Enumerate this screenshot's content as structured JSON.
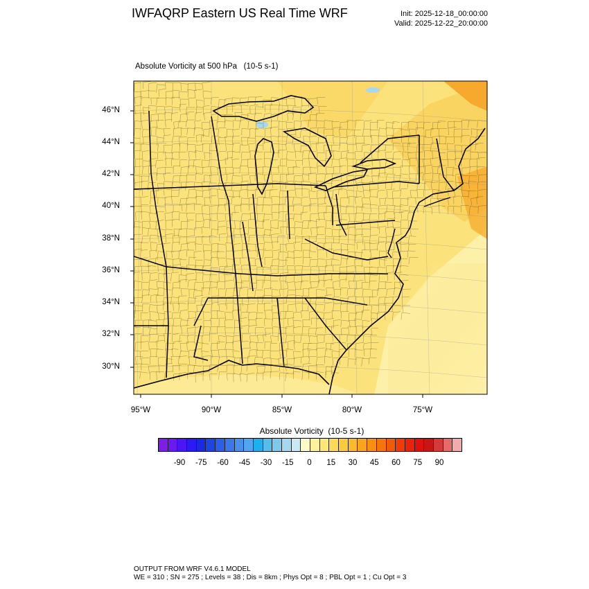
{
  "header": {
    "title": "IWFAQRP Eastern US Real Time WRF",
    "init": "Init: 2025-12-18_00:00:00",
    "valid": "Valid: 2025-12-22_20:00:00"
  },
  "field_label": "Absolute Vorticity at 500 hPa   (10-5 s-1)",
  "map": {
    "lat_labels": [
      "46°N",
      "44°N",
      "42°N",
      "40°N",
      "38°N",
      "36°N",
      "34°N",
      "32°N",
      "30°N"
    ],
    "lon_labels": [
      "95°W",
      "90°W",
      "85°W",
      "80°W",
      "75°W"
    ],
    "colors": {
      "base_fill": "#fbe27a",
      "light_fill": "#fdf0a8",
      "strong_fill": "#f9c84a",
      "orange_fill": "#f6a92c",
      "lake_fill": "#a9d8ee",
      "border": "#000000"
    }
  },
  "colorbar": {
    "title": "Absolute Vorticity  (10-5 s-1)",
    "tick_labels": [
      "-90",
      "-75",
      "-60",
      "-45",
      "-30",
      "-15",
      "0",
      "15",
      "30",
      "45",
      "60",
      "75",
      "90"
    ],
    "colors": [
      "#7d1de6",
      "#6a19f0",
      "#4b16f5",
      "#2a1bf3",
      "#1a2ae0",
      "#1c45e2",
      "#2d5fe6",
      "#3a78ea",
      "#4890ec",
      "#52a6ef",
      "#1cb0ee",
      "#54bde9",
      "#7ec9e9",
      "#a5d8ef",
      "#c8e8f3",
      "#fef9c8",
      "#fef19b",
      "#fde877",
      "#fdd95a",
      "#fcca3e",
      "#fbb92c",
      "#f9a51c",
      "#f78f10",
      "#f47609",
      "#f15b06",
      "#ef3c06",
      "#ec2109",
      "#e0100f",
      "#c81616",
      "#d43a3a",
      "#e56a6a",
      "#f3aaaa"
    ]
  },
  "footer": {
    "line1": "OUTPUT FROM WRF V4.6.1 MODEL",
    "line2": "WE = 310 ; SN = 275 ; Levels = 38 ; Dis = 8km ; Phys Opt = 8 ; PBL Opt = 1 ; Cu Opt = 3"
  }
}
